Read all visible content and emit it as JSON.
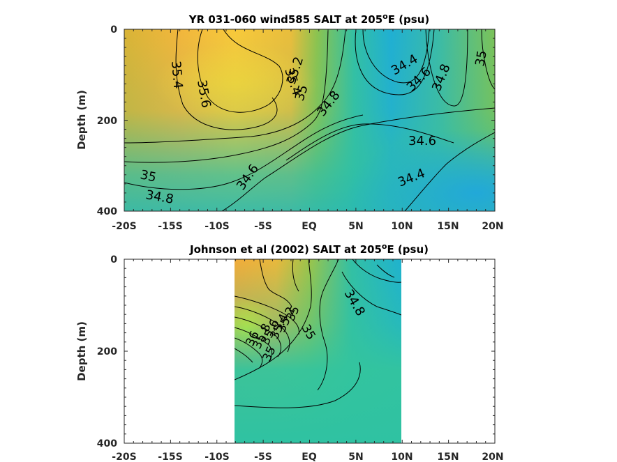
{
  "chart_data": [
    {
      "type": "heatmap",
      "title": "YR 031-060 wind585 SALT at 205",
      "title_sup": "o",
      "title_tail": "E (psu)",
      "xlabel": "",
      "ylabel": "Depth (m)",
      "x_ticks": [
        "-20S",
        "-15S",
        "-10S",
        "-5S",
        "EQ",
        "5N",
        "10N",
        "15N",
        "20N"
      ],
      "y_ticks": [
        "0",
        "200",
        "400"
      ],
      "xlim": [
        -20,
        20
      ],
      "ylim": [
        400,
        0
      ],
      "data_extent_x": [
        -20,
        20
      ],
      "contour_labels": [
        "35.4",
        "35.6",
        "35.4",
        "35.2",
        "35",
        "34.8",
        "34.4",
        "34.6",
        "34.8",
        "35",
        "34.6",
        "34.6",
        "34.4",
        "35",
        "34.8"
      ]
    },
    {
      "type": "heatmap",
      "title": "Johnson et al (2002) SALT at 205",
      "title_sup": "o",
      "title_tail": "E (psu)",
      "xlabel": "",
      "ylabel": "Depth (m)",
      "x_ticks": [
        "-20S",
        "-15S",
        "-10S",
        "-5S",
        "EQ",
        "5N",
        "10N",
        "15N",
        "20N"
      ],
      "y_ticks": [
        "0",
        "200",
        "400"
      ],
      "xlim": [
        -20,
        20
      ],
      "ylim": [
        400,
        0
      ],
      "data_extent_x": [
        -8,
        10
      ],
      "contour_labels": [
        "34.8",
        "35",
        "35.2",
        "35.4",
        "35.6",
        "35.8",
        "36",
        "35",
        "35"
      ]
    }
  ]
}
